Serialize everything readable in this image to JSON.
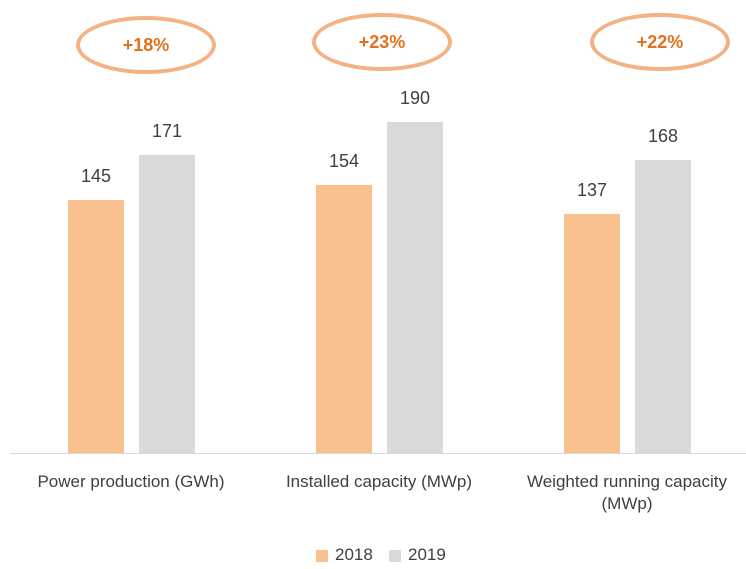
{
  "chart_data": {
    "type": "bar",
    "categories": [
      "Power production (GWh)",
      "Installed capacity (MWp)",
      "Weighted running capacity (MWp)"
    ],
    "series": [
      {
        "name": "2018",
        "color": "#f8c08f",
        "values": [
          145,
          154,
          137
        ]
      },
      {
        "name": "2019",
        "color": "#d9d9d9",
        "values": [
          171,
          190,
          168
        ]
      }
    ],
    "annotations": [
      "+18%",
      "+23%",
      "+22%"
    ],
    "legend": "bottom"
  }
}
